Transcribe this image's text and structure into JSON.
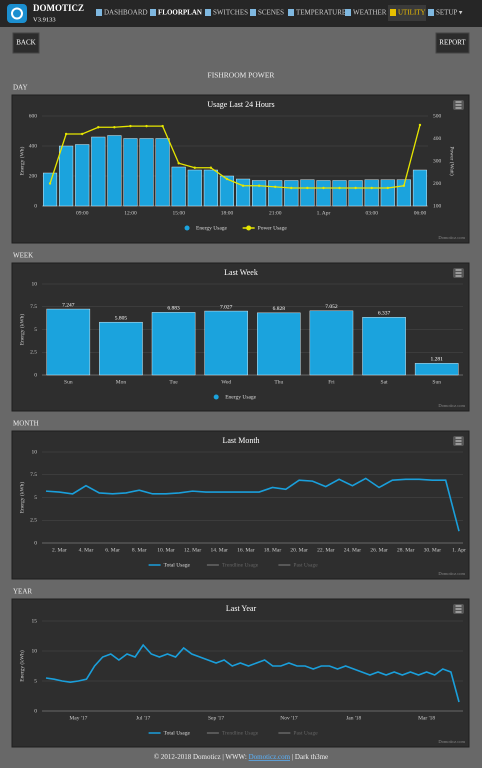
{
  "header": {
    "brand": "DOMOTICZ",
    "version": "V3.9133"
  },
  "nav": [
    "DASHBOARD",
    "FLOORPLAN",
    "SWITCHES",
    "SCENES",
    "TEMPERATURE",
    "WEATHER",
    "UTILITY",
    "SETUP ▾"
  ],
  "buttons": {
    "back": "BACK",
    "report": "REPORT"
  },
  "page_title": "FISHROOM POWER",
  "sections": [
    "DAY",
    "WEEK",
    "MONTH",
    "YEAR"
  ],
  "chart_data": [
    {
      "type": "bar",
      "title": "Usage Last 24 Hours",
      "ylabel": "Energy (Wh)",
      "y2label": "Power (Watt)",
      "categories": [
        null,
        null,
        "09:00",
        null,
        null,
        "12:00",
        null,
        null,
        "15:00",
        null,
        null,
        "18:00",
        null,
        null,
        "21:00",
        null,
        null,
        "1. Apr",
        null,
        null,
        "03:00",
        null,
        null,
        "06:00"
      ],
      "series": [
        {
          "name": "Energy Usage",
          "color": "#1ba3dd",
          "values": [
            220,
            400,
            410,
            460,
            470,
            450,
            450,
            450,
            260,
            240,
            240,
            200,
            180,
            170,
            170,
            170,
            175,
            170,
            170,
            170,
            175,
            175,
            175,
            240
          ]
        },
        {
          "name": "Power Usage",
          "color": "#e6e600",
          "type": "line",
          "axis": "y2",
          "values": [
            200,
            420,
            420,
            450,
            450,
            455,
            455,
            455,
            290,
            270,
            270,
            220,
            190,
            190,
            185,
            180,
            180,
            180,
            180,
            180,
            180,
            180,
            190,
            460
          ]
        }
      ],
      "ylim": [
        0,
        600
      ],
      "yticks": [
        0,
        200,
        400,
        600
      ],
      "y2lim": [
        100,
        500
      ],
      "y2ticks": [
        100,
        200,
        300,
        400,
        500
      ],
      "grid": true,
      "credit": "Domoticz.com"
    },
    {
      "type": "bar",
      "title": "Last Week",
      "ylabel": "Energy (kWh)",
      "categories": [
        "Sun",
        "Mon",
        "Tue",
        "Wed",
        "Thu",
        "Fri",
        "Sat",
        "Sun"
      ],
      "series": [
        {
          "name": "Energy Usage",
          "color": "#1ba3dd",
          "values": [
            7.247,
            5.805,
            6.883,
            7.027,
            6.828,
            7.052,
            6.337,
            1.281
          ]
        }
      ],
      "data_labels": true,
      "ylim": [
        0,
        10
      ],
      "yticks": [
        0,
        2.5,
        5,
        7.5,
        10
      ],
      "grid": true,
      "credit": "Domoticz.com"
    },
    {
      "type": "line",
      "title": "Last Month",
      "ylabel": "Energy (kWh)",
      "categories": [
        null,
        "2. Mar",
        null,
        "4. Mar",
        null,
        "6. Mar",
        null,
        "8. Mar",
        null,
        "10. Mar",
        null,
        "12. Mar",
        null,
        "14. Mar",
        null,
        "16. Mar",
        null,
        "18. Mar",
        null,
        "20. Mar",
        null,
        "22. Mar",
        null,
        "24. Mar",
        null,
        "26. Mar",
        null,
        "28. Mar",
        null,
        "30. Mar",
        null,
        "1. Apr"
      ],
      "series": [
        {
          "name": "Total Usage",
          "color": "#1a9fdb",
          "values": [
            5.7,
            5.6,
            5.4,
            6.3,
            5.5,
            5.4,
            5.5,
            5.8,
            5.4,
            5.4,
            5.5,
            5.7,
            5.6,
            5.6,
            5.6,
            5.6,
            5.6,
            6.1,
            5.9,
            6.9,
            6.8,
            6.2,
            7.0,
            6.3,
            7.1,
            6.1,
            6.9,
            7.0,
            7.0,
            6.9,
            6.9,
            1.3
          ]
        }
      ],
      "legend_disabled": [
        "Trendline Usage",
        "Past Usage"
      ],
      "ylim": [
        0,
        10
      ],
      "yticks": [
        0,
        2.5,
        5,
        7.5,
        10
      ],
      "grid": true,
      "credit": "Domoticz.com"
    },
    {
      "type": "line",
      "title": "Last Year",
      "ylabel": "Energy (kWh)",
      "categories": [
        null,
        null,
        null,
        null,
        "May '17",
        null,
        null,
        null,
        null,
        null,
        null,
        null,
        "Jul '17",
        null,
        null,
        null,
        null,
        null,
        null,
        null,
        null,
        "Sep '17",
        null,
        null,
        null,
        null,
        null,
        null,
        null,
        null,
        "Nov '17",
        null,
        null,
        null,
        null,
        null,
        null,
        null,
        "Jan '18",
        null,
        null,
        null,
        null,
        null,
        null,
        null,
        null,
        "Mar '18",
        null,
        null,
        null,
        null
      ],
      "series": [
        {
          "name": "Total Usage",
          "color": "#1a9fdb",
          "values": [
            5.5,
            5.3,
            5.0,
            4.8,
            5.0,
            5.3,
            7.5,
            9.0,
            9.5,
            8.5,
            9.5,
            9.0,
            11.0,
            9.5,
            9.0,
            9.5,
            9.0,
            10.5,
            9.5,
            9.0,
            8.5,
            8.0,
            8.5,
            7.5,
            8.0,
            7.5,
            8.0,
            8.5,
            7.5,
            7.5,
            8.0,
            7.5,
            7.5,
            7.0,
            7.5,
            7.5,
            7.0,
            7.5,
            7.0,
            6.5,
            6.0,
            6.5,
            6.0,
            6.5,
            6.0,
            6.5,
            6.0,
            6.5,
            6.0,
            7.0,
            6.5,
            1.5
          ]
        }
      ],
      "legend_disabled": [
        "Trendline Usage",
        "Past Usage"
      ],
      "ylim": [
        0,
        15
      ],
      "yticks": [
        0,
        5,
        10,
        15
      ],
      "grid": true,
      "credit": "Domoticz.com"
    }
  ],
  "footer": {
    "text": "© 2012-2018 Domoticz | WWW: ",
    "link": "Domoticz.com",
    "theme": " | Dark th3me"
  }
}
